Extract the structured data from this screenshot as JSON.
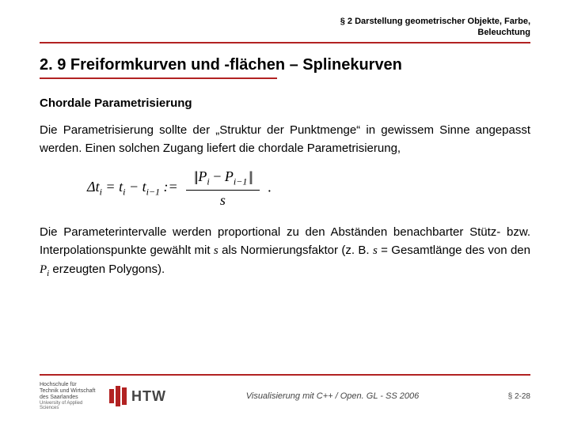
{
  "header": {
    "line1": "§ 2 Darstellung geometrischer Objekte, Farbe,",
    "line2": "Beleuchtung"
  },
  "section_title": "2. 9 Freiformkurven und -flächen – Splinekurven",
  "subtitle": "Chordale Parametrisierung",
  "para1": "Die Parametrisierung sollte der „Struktur der Punktmenge“ in gewissem Sinne angepasst werden. Einen solchen Zugang liefert die chordale Parametrisierung,",
  "formula": {
    "delta": "Δt",
    "eq": " = ",
    "t": "t",
    "minus": " − ",
    "assign": " := ",
    "norm_inner": "P",
    "s": "s",
    "dot": "."
  },
  "para2_a": "Die Parameterintervalle werden proportional zu den Abständen benachbarter Stütz- bzw. Interpolationspunkte gewählt mit ",
  "para2_b": " als Normierungsfaktor (z. B. ",
  "para2_c": " = Gesamtlänge des von den ",
  "para2_d": " erzeugten Polygons).",
  "footer": {
    "hs1": "Hochschule für",
    "hs2": "Technik und Wirtschaft",
    "hs3": "des Saarlandes",
    "hs4": "University of Applied Sciences",
    "htw": "HTW",
    "center": "Visualisierung mit C++ / Open. GL -  SS 2006",
    "page": "§ 2-28"
  }
}
